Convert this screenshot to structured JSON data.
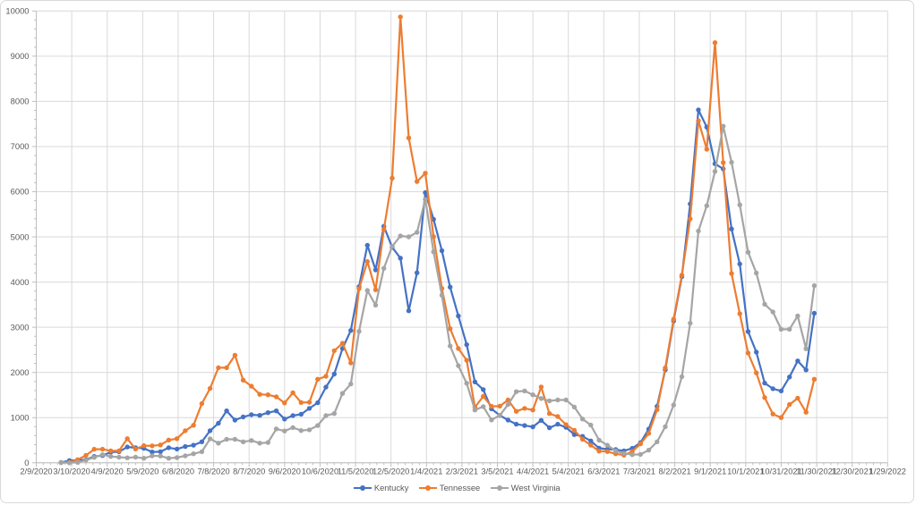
{
  "chart_data": {
    "type": "line",
    "title": "",
    "xlabel": "",
    "ylabel": "",
    "legend_position": "bottom",
    "grid": true,
    "y_axis": {
      "min": 0,
      "max": 10000,
      "major_unit": 1000,
      "minor_unit": 200,
      "tick_labels": [
        "0",
        "1000",
        "2000",
        "3000",
        "4000",
        "5000",
        "6000",
        "7000",
        "8000",
        "9000",
        "10000"
      ]
    },
    "x_axis": {
      "start_date": "2/9/2020",
      "end_date": "1/29/2022",
      "span_days": 720,
      "major_unit_days": 30,
      "minor_unit_days": 6,
      "tick_labels": [
        "2/9/2020",
        "3/10/2020",
        "4/9/2020",
        "5/9/2020",
        "6/8/2020",
        "7/8/2020",
        "8/7/2020",
        "9/6/2020",
        "10/6/2020",
        "11/5/2020",
        "12/5/2020",
        "1/4/2021",
        "2/3/2021",
        "3/5/2021",
        "4/4/2021",
        "5/4/2021",
        "6/3/2021",
        "7/3/2021",
        "8/2/2021",
        "9/1/2021",
        "10/1/2021",
        "10/31/2021",
        "11/30/2021",
        "12/30/2021",
        "1/29/2022"
      ]
    },
    "data_start_offset_days": 21,
    "point_interval_days": 7,
    "x": [
      "3/1/2020",
      "3/8/2020",
      "3/15/2020",
      "3/22/2020",
      "3/29/2020",
      "4/5/2020",
      "4/12/2020",
      "4/19/2020",
      "4/26/2020",
      "5/3/2020",
      "5/10/2020",
      "5/17/2020",
      "5/24/2020",
      "5/31/2020",
      "6/7/2020",
      "6/14/2020",
      "6/21/2020",
      "6/28/2020",
      "7/5/2020",
      "7/12/2020",
      "7/19/2020",
      "7/26/2020",
      "8/2/2020",
      "8/9/2020",
      "8/16/2020",
      "8/23/2020",
      "8/30/2020",
      "9/6/2020",
      "9/13/2020",
      "9/20/2020",
      "9/27/2020",
      "10/4/2020",
      "10/11/2020",
      "10/18/2020",
      "10/25/2020",
      "11/1/2020",
      "11/8/2020",
      "11/15/2020",
      "11/22/2020",
      "11/29/2020",
      "12/6/2020",
      "12/13/2020",
      "12/20/2020",
      "12/27/2020",
      "1/3/2021",
      "1/10/2021",
      "1/17/2021",
      "1/24/2021",
      "1/31/2021",
      "2/7/2021",
      "2/14/2021",
      "2/21/2021",
      "2/28/2021",
      "3/7/2021",
      "3/14/2021",
      "3/21/2021",
      "3/28/2021",
      "4/4/2021",
      "4/11/2021",
      "4/18/2021",
      "4/25/2021",
      "5/2/2021",
      "5/9/2021",
      "5/16/2021",
      "5/23/2021",
      "5/30/2021",
      "6/6/2021",
      "6/13/2021",
      "6/20/2021",
      "6/27/2021",
      "7/4/2021",
      "7/11/2021",
      "7/18/2021",
      "7/25/2021",
      "8/1/2021",
      "8/8/2021",
      "8/15/2021",
      "8/22/2021",
      "8/29/2021",
      "9/5/2021",
      "9/12/2021",
      "9/19/2021",
      "9/26/2021",
      "10/3/2021",
      "10/10/2021",
      "10/17/2021",
      "10/24/2021",
      "10/31/2021",
      "11/7/2021",
      "11/14/2021",
      "11/21/2021",
      "11/28/2021"
    ],
    "series": [
      {
        "name": "Kentucky",
        "color": "#4472C4",
        "values": [
          5,
          50,
          60,
          70,
          140,
          160,
          235,
          245,
          350,
          335,
          320,
          240,
          245,
          335,
          305,
          360,
          390,
          465,
          710,
          875,
          1150,
          945,
          1015,
          1065,
          1050,
          1110,
          1150,
          970,
          1045,
          1075,
          1205,
          1330,
          1675,
          1965,
          2530,
          2930,
          3900,
          4815,
          4270,
          5235,
          4770,
          4530,
          3365,
          4205,
          5980,
          5390,
          4695,
          3890,
          3250,
          2615,
          1790,
          1620,
          1195,
          1050,
          945,
          855,
          825,
          795,
          940,
          775,
          855,
          785,
          625,
          585,
          485,
          325,
          300,
          295,
          265,
          320,
          445,
          745,
          1250,
          2060,
          3140,
          4120,
          5730,
          7810,
          7430,
          6620,
          6505,
          5175,
          4400,
          2905,
          2450,
          1765,
          1640,
          1590,
          1900,
          2255,
          2055,
          3310
        ]
      },
      {
        "name": "Tennessee",
        "color": "#ED7D31",
        "values": [
          5,
          10,
          70,
          165,
          300,
          300,
          265,
          265,
          535,
          305,
          380,
          375,
          395,
          505,
          535,
          710,
          830,
          1310,
          1645,
          2105,
          2105,
          2380,
          1830,
          1695,
          1515,
          1505,
          1460,
          1325,
          1550,
          1335,
          1340,
          1850,
          1915,
          2480,
          2645,
          2210,
          3855,
          4455,
          3830,
          5165,
          6300,
          9870,
          7190,
          6225,
          6410,
          5005,
          3860,
          2970,
          2530,
          2270,
          1230,
          1470,
          1250,
          1255,
          1390,
          1140,
          1205,
          1170,
          1680,
          1090,
          1025,
          845,
          720,
          520,
          390,
          260,
          250,
          200,
          170,
          250,
          420,
          650,
          1175,
          2100,
          3180,
          4155,
          5400,
          7570,
          6940,
          9300,
          6645,
          4190,
          3300,
          2430,
          1990,
          1445,
          1080,
          1000,
          1290,
          1430,
          1120,
          1850
        ]
      },
      {
        "name": "West Virginia",
        "color": "#A5A5A5",
        "values": [
          5,
          0,
          10,
          60,
          120,
          180,
          140,
          125,
          110,
          125,
          100,
          155,
          150,
          100,
          115,
          155,
          200,
          245,
          530,
          435,
          520,
          520,
          465,
          495,
          435,
          450,
          750,
          705,
          780,
          715,
          730,
          825,
          1045,
          1090,
          1535,
          1745,
          2910,
          3815,
          3490,
          4305,
          4790,
          5020,
          5000,
          5100,
          5830,
          4670,
          3710,
          2585,
          2150,
          1760,
          1170,
          1245,
          950,
          1050,
          1290,
          1575,
          1590,
          1505,
          1425,
          1370,
          1390,
          1390,
          1235,
          970,
          835,
          500,
          390,
          265,
          210,
          180,
          185,
          280,
          465,
          800,
          1280,
          1905,
          3090,
          5130,
          5690,
          6450,
          7450,
          6650,
          5710,
          4660,
          4200,
          3510,
          3340,
          2955,
          2955,
          3250,
          2525,
          3920
        ]
      }
    ],
    "style": {
      "gridline_color": "#D9D9D9",
      "axis_line_color": "#BFBFBF",
      "tick_color": "#BFBFBF",
      "label_color": "#595959"
    }
  },
  "legend": {
    "items": [
      {
        "label": "Kentucky",
        "color": "#4472C4"
      },
      {
        "label": "Tennessee",
        "color": "#ED7D31"
      },
      {
        "label": "West Virginia",
        "color": "#A5A5A5"
      }
    ]
  }
}
